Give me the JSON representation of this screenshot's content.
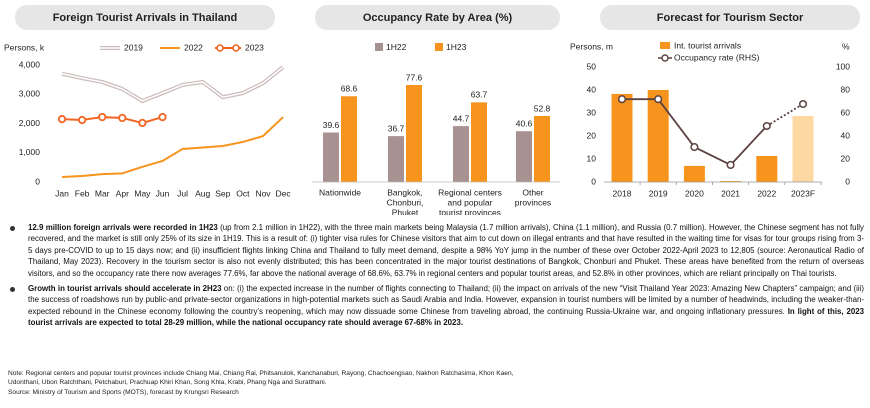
{
  "chart_data": [
    {
      "type": "line",
      "title": "Foreign Tourist Arrivals in Thailand",
      "y_label": "Persons, k",
      "categories": [
        "Jan",
        "Feb",
        "Mar",
        "Apr",
        "May",
        "Jun",
        "Jul",
        "Aug",
        "Sep",
        "Oct",
        "Nov",
        "Dec"
      ],
      "ylim": [
        0,
        4000
      ],
      "yticks": [
        0,
        {
          "value": 1000,
          "label": "1,000"
        },
        {
          "value": 2000,
          "label": "2,000"
        },
        {
          "value": 3000,
          "label": "3,000"
        },
        {
          "value": 4000,
          "label": "4,000"
        }
      ],
      "series": [
        {
          "name": "2019",
          "color": "#cdbcbc",
          "values": [
            3700,
            3550,
            3420,
            3180,
            2770,
            3040,
            3320,
            3420,
            2900,
            3040,
            3380,
            3930
          ]
        },
        {
          "name": "2022",
          "color": "#f7941d",
          "values": [
            170,
            205,
            270,
            295,
            520,
            720,
            1130,
            1180,
            1230,
            1370,
            1570,
            2220
          ]
        },
        {
          "name": "2023",
          "color": "#f26522",
          "markers": true,
          "values": [
            2150,
            2120,
            2220,
            2190,
            2020,
            2220,
            null,
            null,
            null,
            null,
            null,
            null
          ]
        }
      ]
    },
    {
      "type": "bar",
      "title": "Occupancy Rate by Area  (%)",
      "categories": [
        [
          "Nationwide"
        ],
        [
          "Bangkok,",
          "Chonburi,",
          "Phuket"
        ],
        [
          "Regional centers",
          "and popular",
          "tourist provinces"
        ],
        [
          "Other",
          "provinces"
        ]
      ],
      "ylim": [
        0,
        100
      ],
      "series": [
        {
          "name": "1H22",
          "color": "#a89191",
          "values": [
            39.6,
            36.7,
            44.7,
            40.6
          ]
        },
        {
          "name": "1H23",
          "color": "#f7941d",
          "values": [
            68.6,
            77.6,
            63.7,
            52.8
          ]
        }
      ]
    },
    {
      "type": "combo",
      "title": "Forecast for Tourism Sector",
      "y_label": "Persons, m",
      "y2_label": "%",
      "categories": [
        "2018",
        "2019",
        "2020",
        "2021",
        "2022",
        "2023F"
      ],
      "ylim": [
        0,
        50
      ],
      "yticks": [
        0,
        10,
        20,
        30,
        40,
        50
      ],
      "y2lim": [
        0,
        100
      ],
      "y2ticks": [
        0,
        20,
        40,
        60,
        80,
        100
      ],
      "series": [
        {
          "name": "Int. tourist arrivals",
          "kind": "bar",
          "color": "#f7941d",
          "colors": [
            "#f7941d",
            "#f7941d",
            "#f7941d",
            "#f7941d",
            "#f7941d",
            "#fdd8a3"
          ],
          "values": [
            38.3,
            40.0,
            7.0,
            0.4,
            11.3,
            28.7
          ]
        },
        {
          "name": "Occupancy rate (RHS)",
          "kind": "line",
          "axis": "y2",
          "color": "#5b4141",
          "segment_styles": [
            "solid",
            "solid",
            "solid",
            "solid",
            "dotted"
          ],
          "values": [
            72,
            72,
            30.4,
            14.8,
            48.7,
            67.8
          ]
        }
      ]
    }
  ],
  "paragraphs": [
    [
      {
        "text": "12.9 million foreign arrivals were recorded in 1H23",
        "bold": true
      },
      {
        "text": " (up from 2.1 million in 1H22), with the three main markets being Malaysia (1.7 million arrivals), China (1.1 million), and Russia (0.7 million). However, the Chinese segment has not fully recovered, and the market is still only 25% of its size in 1H19. This is a result of: (i) tighter visa rules for Chinese visitors that aim to cut down on illegal entrants and that have resulted in the waiting time for visas for tour groups rising from 3-5 days pre-COVID to up to 15 days now; and (ii) insufficient flights linking China and Thailand to fully meet demand, despite a 98% YoY jump in the number of these over October 2022-April 2023 to 12,805 (source: Aeronautical Radio of Thailand, May 2023). Recovery in the tourism sector is also not evenly distributed; this has been concentrated in the major tourist destinations of Bangkok, Chonburi and Phuket. These areas have benefited from the return of overseas visitors, and so the occupancy rate there now averages 77.6%, far above the national average of 68.6%, 63.7% in regional centers and popular tourist areas, and 52.8% in other provinces, which are reliant principally on Thai tourists."
      }
    ],
    [
      {
        "text": "Growth in tourist arrivals should accelerate in 2H23",
        "bold": true
      },
      {
        "text": " on: (i) the expected increase in the number of flights connecting to Thailand; (ii) the impact on arrivals of the new “Visit Thailand Year 2023: Amazing New Chapters” campaign; and (iii) the success of roadshows run by public-and private-sector organizations in high-potential markets such as Saudi Arabia and India. However, expansion in tourist numbers will be limited by a number of headwinds, including the weaker-than-expected rebound in the Chinese economy following the country’s reopening, which may now dissuade some Chinese from traveling abroad, the continuing Russia-Ukraine war, and ongoing inflationary pressures. "
      },
      {
        "text": "In light of this, 2023 tourist arrivals are expected to total 28-29 million, while the national occupancy rate should average 67-68% in 2023.",
        "bold": true
      }
    ]
  ],
  "note": "Note: Regional centers and popular tourist provinces include Chiang Mai, Chiang Rai, Phitsanulok, Kanchanaburi, Rayong, Chachoengsao, Nakhon Ratchasima, Khon Kaen, Udonthani, Ubon Ratchthani, Petchaburi, Prachuap Khiri Khan, Song Khla, Krabi, Phang Nga and Suratthani.",
  "source": "Source: Ministry of Tourism and Sports (MOTS), forecast by Krungsri Research"
}
